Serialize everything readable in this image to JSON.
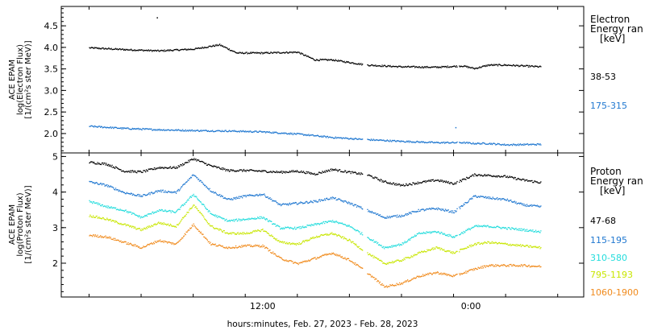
{
  "chart_data": [
    {
      "type": "scatter",
      "panel": "electron",
      "ylabel_lines": [
        "ACE EPAM",
        "log(Electron Flux)",
        "[1/(cm²s ster MeV)]"
      ],
      "ylim": [
        1.55,
        4.95
      ],
      "yticks": [
        "2.0",
        "2.5",
        "3.0",
        "3.5",
        "4.0",
        "4.5"
      ],
      "ytick_values": [
        2.0,
        2.5,
        3.0,
        3.5,
        4.0,
        4.5
      ],
      "legend_title_lines": [
        "Electron",
        "Energy ran",
        "[keV]"
      ],
      "legend_position": "right",
      "series": [
        {
          "name": "38-53",
          "color": "#000000",
          "x": [
            0,
            2,
            4,
            6,
            7.5,
            8.5,
            10,
            12,
            13,
            14,
            16,
            18,
            20,
            21.5,
            22.2,
            23,
            24,
            26
          ],
          "y": [
            4.0,
            3.96,
            3.93,
            3.97,
            4.07,
            3.88,
            3.88,
            3.9,
            3.72,
            3.72,
            3.6,
            3.56,
            3.55,
            3.58,
            3.52,
            3.6,
            3.6,
            3.56
          ]
        },
        {
          "name": "175-315",
          "color": "#1f77d0",
          "x": [
            0,
            2,
            4,
            6,
            8,
            10,
            12,
            14,
            16,
            18,
            20,
            21.5,
            22.2,
            23,
            24,
            26
          ],
          "y": [
            2.18,
            2.13,
            2.1,
            2.08,
            2.07,
            2.05,
            2.0,
            1.92,
            1.87,
            1.83,
            1.8,
            1.8,
            1.78,
            1.78,
            1.75,
            1.76
          ]
        }
      ]
    },
    {
      "type": "scatter",
      "panel": "proton",
      "ylabel_lines": [
        "ACE EPAM",
        "log(Proton Flux)",
        "[1/(cm²s ster MeV)]"
      ],
      "ylim": [
        1.05,
        5.1
      ],
      "yticks": [
        "2",
        "3",
        "4",
        "5"
      ],
      "ytick_values": [
        2,
        3,
        4,
        5
      ],
      "legend_title_lines": [
        "Proton",
        "Energy ran",
        "[keV]"
      ],
      "legend_position": "right",
      "series": [
        {
          "name": "47-68",
          "color": "#000000",
          "x": [
            0,
            1,
            2,
            3,
            4,
            5,
            6,
            7,
            8,
            9,
            10,
            11,
            12,
            13,
            14,
            15,
            16,
            17,
            18,
            19,
            20,
            21,
            22.2,
            23,
            24,
            25,
            26
          ],
          "y": [
            4.85,
            4.8,
            4.6,
            4.58,
            4.7,
            4.7,
            4.95,
            4.75,
            4.62,
            4.62,
            4.6,
            4.57,
            4.6,
            4.52,
            4.65,
            4.57,
            4.5,
            4.3,
            4.2,
            4.28,
            4.35,
            4.25,
            4.5,
            4.48,
            4.45,
            4.35,
            4.28
          ]
        },
        {
          "name": "115-195",
          "color": "#1f77d0",
          "x": [
            0,
            1,
            2,
            3,
            4,
            5,
            6,
            7,
            8,
            9,
            10,
            11,
            12,
            13,
            14,
            15,
            16,
            17,
            18,
            19,
            20,
            21,
            22.2,
            23,
            24,
            25,
            26
          ],
          "y": [
            4.3,
            4.2,
            4.0,
            3.9,
            4.05,
            4.0,
            4.5,
            4.05,
            3.8,
            3.9,
            3.95,
            3.65,
            3.7,
            3.75,
            3.85,
            3.7,
            3.5,
            3.3,
            3.35,
            3.5,
            3.55,
            3.45,
            3.9,
            3.85,
            3.8,
            3.65,
            3.6
          ]
        },
        {
          "name": "310-580",
          "color": "#22dcdc",
          "x": [
            0,
            1,
            2,
            3,
            4,
            5,
            6,
            7,
            8,
            9,
            10,
            11,
            12,
            13,
            14,
            15,
            16,
            17,
            18,
            19,
            20,
            21,
            22.2,
            23,
            24,
            25,
            26
          ],
          "y": [
            3.75,
            3.6,
            3.5,
            3.3,
            3.5,
            3.45,
            3.95,
            3.4,
            3.2,
            3.25,
            3.3,
            3.0,
            3.0,
            3.1,
            3.2,
            3.05,
            2.75,
            2.45,
            2.55,
            2.85,
            2.9,
            2.75,
            3.05,
            3.05,
            3.0,
            2.95,
            2.9
          ]
        },
        {
          "name": "795-1193",
          "color": "#c8e600",
          "x": [
            0,
            1,
            2,
            3,
            4,
            5,
            6,
            7,
            8,
            9,
            10,
            11,
            12,
            13,
            14,
            15,
            16,
            17,
            18,
            19,
            20,
            21,
            22.2,
            23,
            24,
            25,
            26
          ],
          "y": [
            3.35,
            3.25,
            3.1,
            2.95,
            3.15,
            3.05,
            3.65,
            3.05,
            2.85,
            2.85,
            2.95,
            2.6,
            2.55,
            2.75,
            2.85,
            2.65,
            2.3,
            2.0,
            2.1,
            2.3,
            2.45,
            2.3,
            2.55,
            2.6,
            2.55,
            2.5,
            2.45
          ]
        },
        {
          "name": "1060-1900",
          "color": "#f08a1c",
          "x": [
            0,
            1,
            2,
            3,
            4,
            5,
            6,
            7,
            8,
            9,
            10,
            11,
            12,
            13,
            14,
            15,
            16,
            17,
            18,
            19,
            20,
            21,
            22.2,
            23,
            24,
            25,
            26
          ],
          "y": [
            2.8,
            2.75,
            2.6,
            2.45,
            2.65,
            2.55,
            3.1,
            2.55,
            2.45,
            2.5,
            2.5,
            2.15,
            2.0,
            2.15,
            2.3,
            2.1,
            1.75,
            1.35,
            1.45,
            1.65,
            1.75,
            1.65,
            1.85,
            1.95,
            1.95,
            1.95,
            1.92
          ]
        }
      ]
    }
  ],
  "x_axis": {
    "tick_labels": [
      "12:00",
      "0:00"
    ],
    "tick_positions_hours": [
      10,
      22
    ],
    "xlim_hours": [
      -1.6,
      28.5
    ],
    "minor_step_hours": 3,
    "xlabel": "hours:minutes, Feb. 27, 2023 - Feb. 28, 2023"
  },
  "gaps_hours": [
    [
      15.75,
      16.0
    ],
    [
      21.2,
      21.3
    ]
  ],
  "outliers": [
    {
      "panel": "electron",
      "series": "38-53",
      "x": 3.9,
      "y": 4.7
    },
    {
      "panel": "electron",
      "series": "175-315",
      "x": 21.1,
      "y": 2.15
    }
  ]
}
